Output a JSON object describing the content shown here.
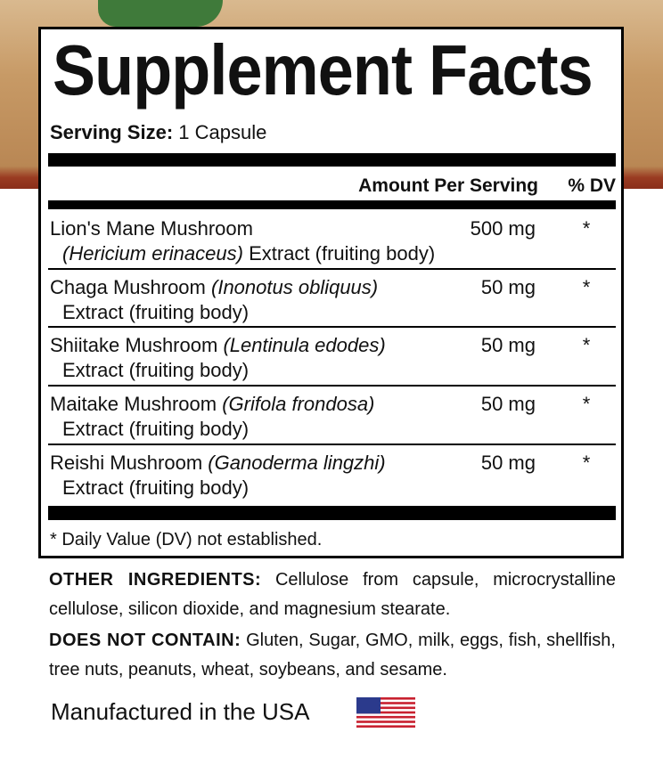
{
  "header": {
    "title": "Supplement Facts",
    "serving_size_label": "Serving Size:",
    "serving_size_value": "1 Capsule"
  },
  "table": {
    "columns": [
      "Amount Per Serving",
      "% DV"
    ],
    "rows": [
      {
        "name": "Lion's Mane Mushroom",
        "latin": "(Hericium erinaceus)",
        "extract": "Extract (fruiting body)",
        "amount": "500 mg",
        "dv": "*"
      },
      {
        "name": "Chaga Mushroom",
        "latin": "(Inonotus obliquus)",
        "extract": "Extract (fruiting body)",
        "amount": "50 mg",
        "dv": "*"
      },
      {
        "name": "Shiitake Mushroom",
        "latin": "(Lentinula edodes)",
        "extract": "Extract (fruiting body)",
        "amount": "50 mg",
        "dv": "*"
      },
      {
        "name": "Maitake Mushroom",
        "latin": "(Grifola frondosa)",
        "extract": "Extract (fruiting body)",
        "amount": "50 mg",
        "dv": "*"
      },
      {
        "name": "Reishi Mushroom",
        "latin": "(Ganoderma lingzhi)",
        "extract": "Extract (fruiting body)",
        "amount": "50 mg",
        "dv": "*"
      }
    ],
    "footnote": "* Daily Value (DV) not established."
  },
  "other_ingredients": {
    "label": "OTHER INGREDIENTS:",
    "text": "Cellulose from capsule, microcrystalline cellulose, silicon dioxide, and magnesium stearate."
  },
  "does_not_contain": {
    "label": "DOES NOT CONTAIN:",
    "text": "Gluten, Sugar, GMO, milk, eggs, fish, shellfish, tree nuts, peanuts, wheat, soybeans, and sesame."
  },
  "origin": "Manufactured in the USA"
}
